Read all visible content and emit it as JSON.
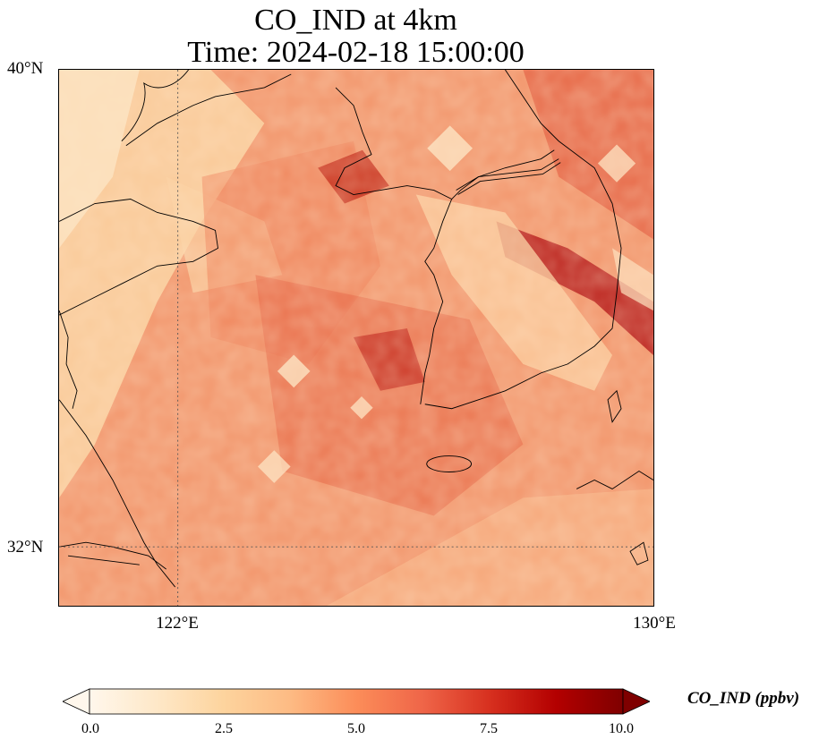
{
  "title": {
    "line1": "CO_IND at 4km",
    "line2": "Time: 2024-02-18 15:00:00"
  },
  "axes": {
    "lat_labels": [
      "40°N",
      "32°N"
    ],
    "lon_labels": [
      "122°E",
      "130°E"
    ]
  },
  "colorbar": {
    "label": "CO_IND (ppbv)",
    "ticks": [
      "0.0",
      "2.5",
      "5.0",
      "7.5",
      "10.0"
    ],
    "colormap": "OrRd",
    "extend": "both"
  },
  "map": {
    "lon_range": [
      120,
      130
    ],
    "lat_range": [
      31,
      40
    ],
    "gridlines": "dotted"
  }
}
